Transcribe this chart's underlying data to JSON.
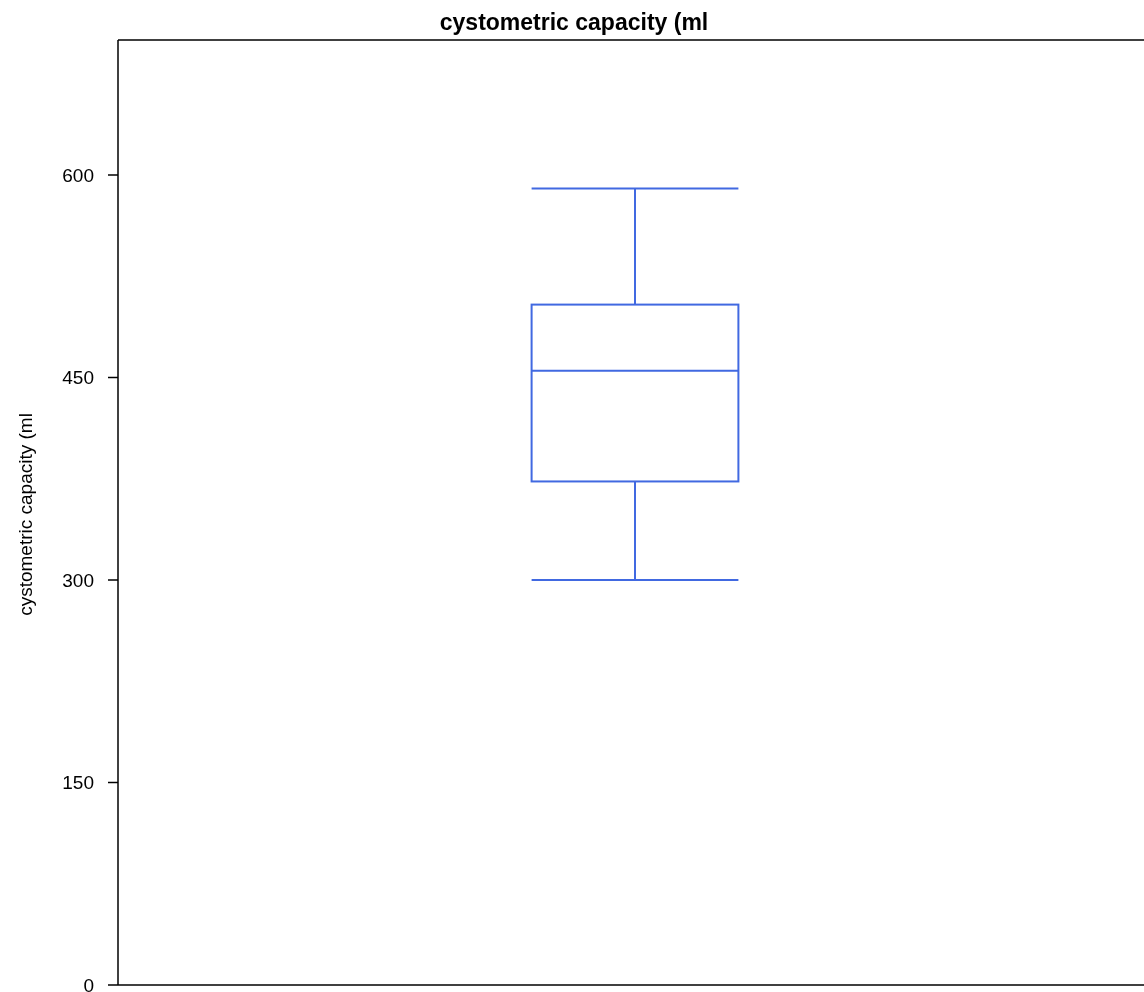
{
  "chart_data": {
    "type": "box",
    "title": "cystometric capacity (ml",
    "ylabel": "cystometric capacity (ml",
    "categories": [
      null
    ],
    "series": [
      {
        "color": "#4169e1",
        "boxes": [
          {
            "low": 300,
            "q1": 373,
            "median": 455,
            "q3": 504,
            "high": 590
          }
        ]
      }
    ],
    "ylim": [
      0,
      700
    ],
    "yticks": [
      0,
      150,
      300,
      450,
      600
    ],
    "grid": false
  }
}
